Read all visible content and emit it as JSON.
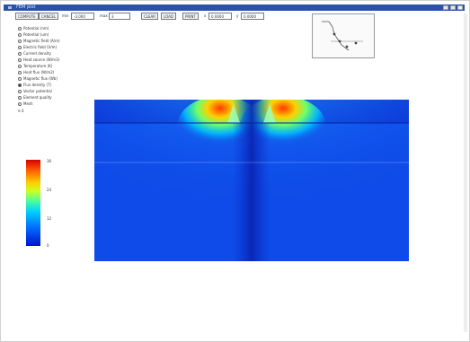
{
  "window": {
    "title": "FEM plot",
    "accent": "#2a53a6",
    "controls": [
      "minimize-icon",
      "maximize-icon",
      "close-icon"
    ]
  },
  "toolbar": {
    "items": [
      {
        "kind": "button",
        "label": "COMPUTE"
      },
      {
        "kind": "button",
        "label": "CANCEL"
      },
      {
        "kind": "label",
        "label": "min"
      },
      {
        "kind": "input",
        "value": "-3.000"
      },
      {
        "kind": "label",
        "label": "max"
      },
      {
        "kind": "input",
        "value": "3"
      },
      {
        "kind": "button",
        "label": "CLEAR"
      },
      {
        "kind": "button",
        "label": "LOAD"
      },
      {
        "kind": "button",
        "label": "PRINT"
      },
      {
        "kind": "label",
        "label": "x"
      },
      {
        "kind": "input",
        "value": "0.0000"
      },
      {
        "kind": "label",
        "label": "y"
      },
      {
        "kind": "input",
        "value": "0.0000"
      }
    ]
  },
  "field_options": {
    "items": [
      {
        "label": "Potential (nm)",
        "selected": false
      },
      {
        "label": "Potential (um)",
        "selected": false
      },
      {
        "label": "Magnetic field (A/m)",
        "selected": false
      },
      {
        "label": "Electric field (V/m)",
        "selected": false
      },
      {
        "label": "Current density",
        "selected": false
      },
      {
        "label": "Heat source (W/m3)",
        "selected": false
      },
      {
        "label": "Temperature (K)",
        "selected": false
      },
      {
        "label": "Heat flux (W/m2)",
        "selected": false
      },
      {
        "label": "Magnetic flux (Wb)",
        "selected": false
      },
      {
        "label": "Flux density (T)",
        "selected": true
      },
      {
        "label": "Vector potential",
        "selected": false
      },
      {
        "label": "Element quality",
        "selected": false
      },
      {
        "label": "Mesh",
        "selected": false
      }
    ],
    "exponent_label": "e-3"
  },
  "colorbar": {
    "colors": [
      "#d40000",
      "#ff5a00",
      "#ffcc00",
      "#cfff1f",
      "#4cff9a",
      "#00d0ff",
      "#0070ff",
      "#0012ce"
    ],
    "ticks": [
      "36",
      "24",
      "12",
      "0"
    ]
  },
  "plot": {
    "type": "heatmap",
    "description_hidden": true,
    "top_layer_color": "#0a2fd1",
    "background_color": "#0f4be8",
    "hotspot_color": "#ff3a00",
    "divider_color": "#9ec8ff"
  }
}
